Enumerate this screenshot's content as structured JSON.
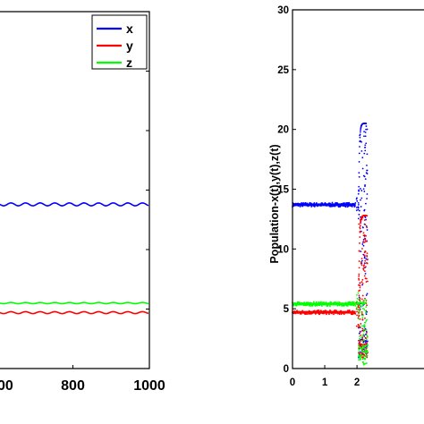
{
  "chart_data": [
    {
      "type": "line",
      "title": "",
      "xlabel": "",
      "ylabel": "",
      "xlim": [
        600,
        1000
      ],
      "x_ticks": [
        {
          "value": 800,
          "label": "800"
        },
        {
          "value": 1000,
          "label": "1000"
        }
      ],
      "x_partial_tick_label": "00",
      "y_domain": [
        0,
        30
      ],
      "y_ticks": [
        5,
        10,
        15,
        20,
        25
      ],
      "legend": {
        "position": "top-right",
        "entries": [
          "x",
          "y",
          "z"
        ]
      },
      "series": [
        {
          "name": "x",
          "color": "#0000ff",
          "level": 13.8,
          "ripple": 0.12
        },
        {
          "name": "y",
          "color": "#ff0000",
          "level": 4.7,
          "ripple": 0.08
        },
        {
          "name": "z",
          "color": "#00ff00",
          "level": 5.5,
          "ripple": 0.05
        }
      ]
    },
    {
      "type": "scatter",
      "title": "",
      "xlabel": "",
      "ylabel": "Population-x(t),y(t),z(t)",
      "xlim": [
        0,
        4.3
      ],
      "ylim": [
        0,
        30
      ],
      "x_ticks": [
        0,
        1,
        2
      ],
      "x_partial_tick_label": "2",
      "y_ticks": [
        0,
        5,
        10,
        15,
        20,
        25,
        30
      ],
      "series": [
        {
          "name": "x(t)",
          "color": "#0000ff",
          "initial_level": 13.7,
          "transition_x": 2.0,
          "upper_envelope": 20.5
        },
        {
          "name": "y(t)",
          "color": "#ff0000",
          "initial_level": 4.7,
          "transition_x": 2.0,
          "upper_envelope": 12.8
        },
        {
          "name": "z(t)",
          "color": "#00ff00",
          "initial_level": 5.4,
          "transition_x": 2.0,
          "upper_envelope": 5.5
        }
      ]
    }
  ]
}
